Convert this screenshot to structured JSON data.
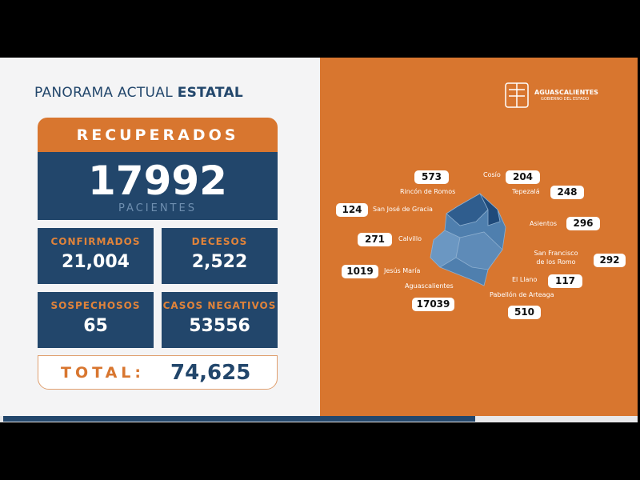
{
  "header": {
    "title": "PANORAMA ACTUAL",
    "title_bold": "ESTATAL"
  },
  "recovered": {
    "label": "RECUPERADOS",
    "value": "17992",
    "unit": "PACIENTES"
  },
  "stats": [
    {
      "label": "CONFIRMADOS",
      "value": "21,004"
    },
    {
      "label": "DECESOS",
      "value": "2,522"
    },
    {
      "label": "SOSPECHOSOS",
      "value": "65"
    },
    {
      "label": "CASOS NEGATIVOS",
      "value": "53556"
    }
  ],
  "total": {
    "label": "TOTAL:",
    "value": "74,625"
  },
  "logo": {
    "name": "AGUASCALIENTES",
    "subtitle": "GOBIERNO DEL ESTADO"
  },
  "municipalities": [
    {
      "name": "Cosío",
      "value": "204"
    },
    {
      "name": "Rincón de Romos",
      "value": "573"
    },
    {
      "name": "Tepezalá",
      "value": "248"
    },
    {
      "name": "San José de Gracia",
      "value": "124"
    },
    {
      "name": "Asientos",
      "value": "296"
    },
    {
      "name": "Calvillo",
      "value": "271"
    },
    {
      "name": "San Francisco de los Romo",
      "value": "292"
    },
    {
      "name": "Jesús María",
      "value": "1019"
    },
    {
      "name": "El Llano",
      "value": "117"
    },
    {
      "name": "Aguascalientes",
      "value": "17039"
    },
    {
      "name": "Pabellón de Arteaga",
      "value": "510"
    }
  ]
}
